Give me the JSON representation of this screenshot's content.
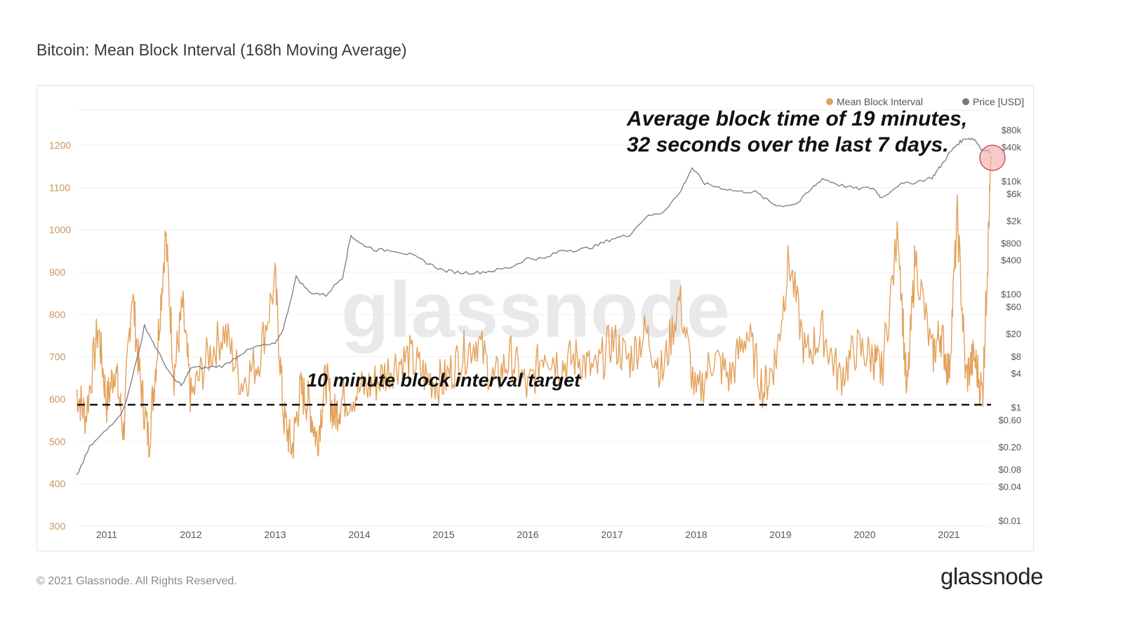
{
  "title": "Bitcoin: Mean Block Interval (168h Moving Average)",
  "footer": "© 2021 Glassnode. All Rights Reserved.",
  "brand": "glassnode",
  "watermark": "glassnode",
  "colors": {
    "interval": "#e3a15a",
    "price": "#7a7a7a",
    "target": "#111111",
    "highlight": "#f4b4b4"
  },
  "chart_data": {
    "type": "line",
    "title": "Bitcoin: Mean Block Interval (168h Moving Average)",
    "legend": [
      {
        "name": "Mean Block Interval",
        "color": "#e3a15a"
      },
      {
        "name": "Price [USD]",
        "color": "#7a7a7a"
      }
    ],
    "legend_position": "top-right",
    "grid": true,
    "left_axis": {
      "ticks": [
        300,
        400,
        500,
        600,
        700,
        800,
        900,
        1000,
        1100,
        1200
      ],
      "range": [
        300,
        1250
      ]
    },
    "right_axis": {
      "scale": "log",
      "tick_labels": [
        "$0.01",
        "$0.04",
        "$0.08",
        "$0.20",
        "$0.60",
        "$1",
        "$4",
        "$8",
        "$20",
        "$60",
        "$100",
        "$400",
        "$800",
        "$2k",
        "$6k",
        "$10k",
        "$40k",
        "$80k"
      ],
      "tick_values": [
        0.01,
        0.04,
        0.08,
        0.2,
        0.6,
        1,
        4,
        8,
        20,
        60,
        100,
        400,
        800,
        2000,
        6000,
        10000,
        40000,
        80000
      ]
    },
    "x_axis": {
      "ticks": [
        "2011",
        "2012",
        "2013",
        "2014",
        "2015",
        "2016",
        "2017",
        "2018",
        "2019",
        "2020",
        "2021"
      ],
      "range": [
        2010.64,
        2021.52
      ]
    },
    "series": [
      {
        "name": "Mean Block Interval",
        "x": [
          2010.64,
          2010.75,
          2010.9,
          2011.0,
          2011.1,
          2011.2,
          2011.3,
          2011.4,
          2011.5,
          2011.6,
          2011.7,
          2011.8,
          2011.9,
          2012.0,
          2012.2,
          2012.4,
          2012.6,
          2012.8,
          2013.0,
          2013.1,
          2013.2,
          2013.3,
          2013.4,
          2013.5,
          2013.6,
          2013.7,
          2013.8,
          2014.0,
          2014.2,
          2014.4,
          2014.6,
          2014.8,
          2015.0,
          2015.2,
          2015.4,
          2015.6,
          2015.8,
          2016.0,
          2016.2,
          2016.4,
          2016.6,
          2016.8,
          2017.0,
          2017.2,
          2017.4,
          2017.6,
          2017.8,
          2018.0,
          2018.2,
          2018.4,
          2018.6,
          2018.8,
          2018.95,
          2019.1,
          2019.3,
          2019.5,
          2019.7,
          2019.9,
          2020.1,
          2020.2,
          2020.4,
          2020.5,
          2020.6,
          2020.8,
          2020.9,
          2021.0,
          2021.1,
          2021.2,
          2021.3,
          2021.4,
          2021.45,
          2021.5
        ],
        "values": [
          620,
          560,
          770,
          590,
          680,
          520,
          860,
          640,
          500,
          720,
          990,
          660,
          820,
          600,
          700,
          760,
          640,
          690,
          880,
          560,
          480,
          620,
          590,
          500,
          650,
          560,
          600,
          620,
          640,
          680,
          700,
          650,
          640,
          700,
          740,
          640,
          700,
          620,
          720,
          680,
          700,
          660,
          740,
          690,
          760,
          660,
          840,
          600,
          700,
          650,
          760,
          620,
          700,
          930,
          700,
          760,
          650,
          720,
          700,
          660,
          1000,
          600,
          940,
          700,
          760,
          660,
          1030,
          650,
          700,
          610,
          880,
          1160
        ]
      },
      {
        "name": "Price [USD]",
        "x": [
          2010.64,
          2010.8,
          2011.0,
          2011.2,
          2011.4,
          2011.45,
          2011.6,
          2011.8,
          2011.9,
          2012.0,
          2012.2,
          2012.4,
          2012.6,
          2012.8,
          2013.0,
          2013.1,
          2013.25,
          2013.4,
          2013.6,
          2013.8,
          2013.9,
          2014.0,
          2014.2,
          2014.4,
          2014.6,
          2014.8,
          2015.0,
          2015.2,
          2015.4,
          2015.6,
          2015.8,
          2016.0,
          2016.2,
          2016.4,
          2016.6,
          2016.8,
          2017.0,
          2017.2,
          2017.4,
          2017.6,
          2017.8,
          2017.95,
          2018.1,
          2018.3,
          2018.5,
          2018.7,
          2018.9,
          2019.0,
          2019.2,
          2019.4,
          2019.5,
          2019.7,
          2019.9,
          2020.1,
          2020.2,
          2020.4,
          2020.6,
          2020.8,
          2020.9,
          2021.0,
          2021.1,
          2021.2,
          2021.3,
          2021.4,
          2021.5
        ],
        "values": [
          0.06,
          0.2,
          0.4,
          0.9,
          12,
          28,
          10,
          3,
          2.5,
          5,
          5,
          5.5,
          9,
          12,
          13,
          25,
          200,
          110,
          95,
          200,
          1100,
          800,
          600,
          600,
          500,
          360,
          260,
          240,
          240,
          260,
          300,
          430,
          420,
          600,
          600,
          700,
          950,
          1100,
          2300,
          2800,
          6000,
          17000,
          9000,
          7500,
          6500,
          6400,
          4000,
          3600,
          4000,
          8000,
          11000,
          8500,
          7300,
          7500,
          5000,
          8500,
          9500,
          11500,
          18000,
          30000,
          45000,
          57000,
          55000,
          35000,
          33000
        ]
      }
    ],
    "reference_line": {
      "y": 600,
      "label": "10 minute block interval target"
    },
    "annotations": [
      "Average block time of 19 minutes,",
      "32 seconds over the last 7 days."
    ]
  }
}
